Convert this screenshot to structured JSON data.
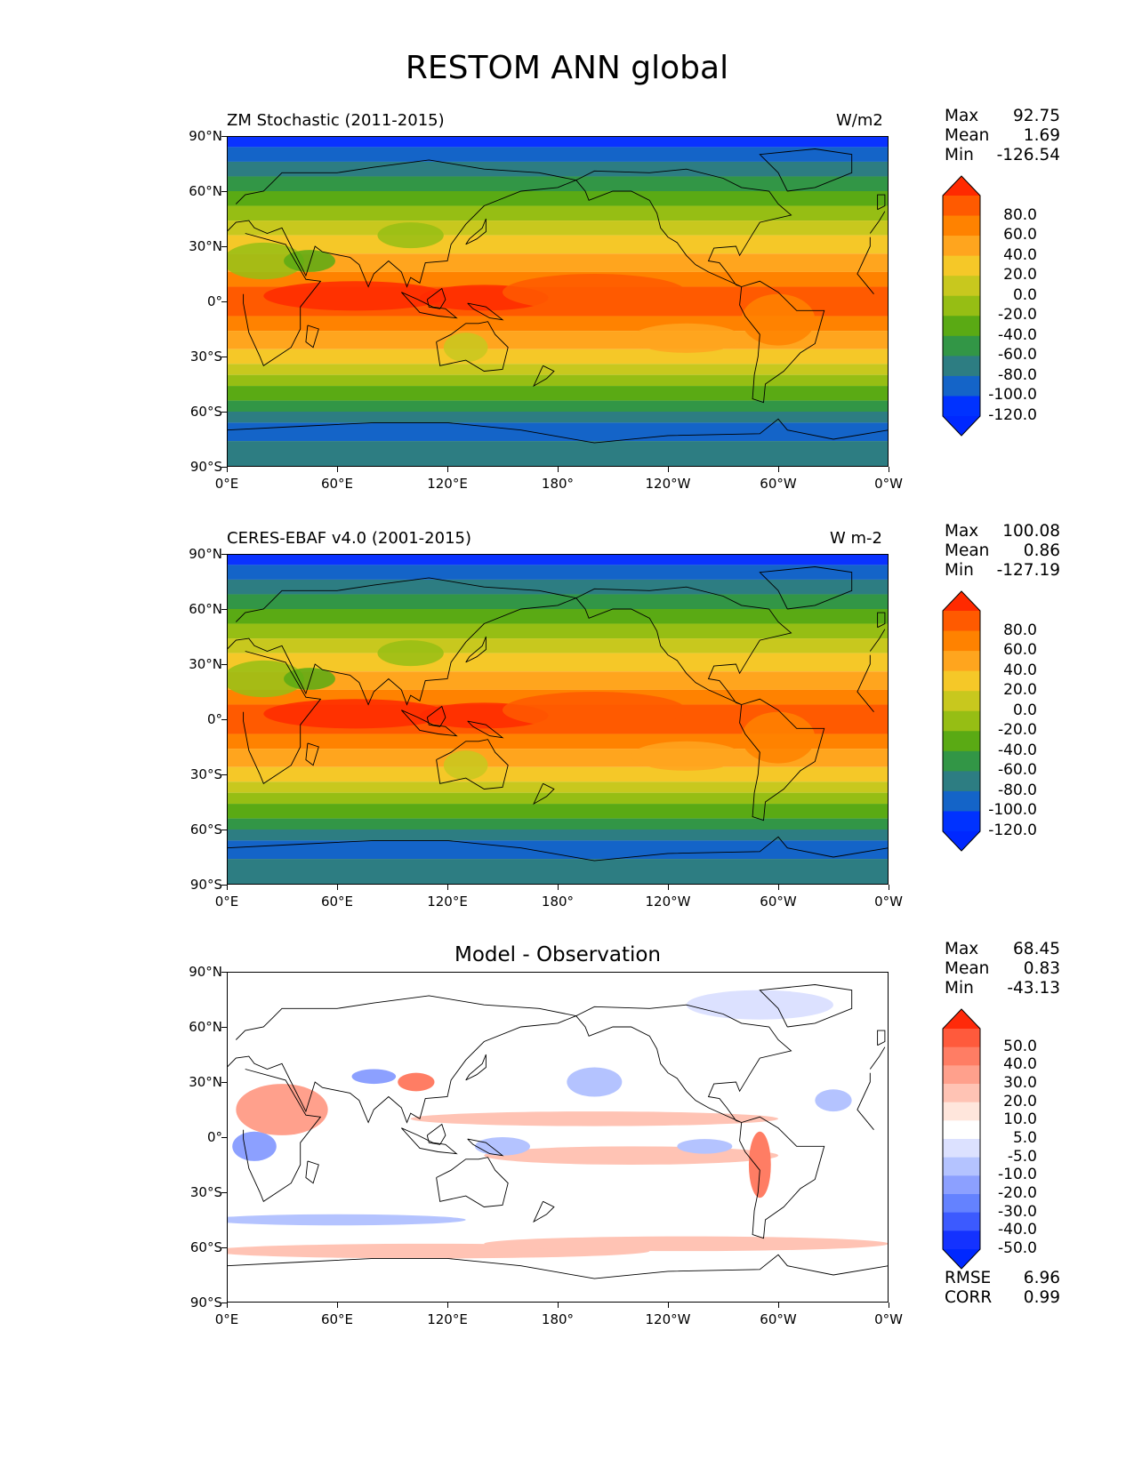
{
  "title": "RESTOM ANN global",
  "panels": [
    {
      "id": "model",
      "title": "ZM Stochastic (2011-2015)",
      "units": "W/m2",
      "stats": {
        "max_label": "Max",
        "max": "92.75",
        "mean_label": "Mean",
        "mean": "1.69",
        "min_label": "Min",
        "min": "-126.54"
      },
      "colorbar": {
        "labels": [
          "80.0",
          "60.0",
          "40.0",
          "20.0",
          "0.0",
          "-20.0",
          "-40.0",
          "-60.0",
          "-80.0",
          "-100.0",
          "-120.0"
        ],
        "colors": [
          "#ff2a00",
          "#ff5a00",
          "#ff8200",
          "#ffa51e",
          "#f5c828",
          "#c8c81e",
          "#96be14",
          "#5aaa14",
          "#329646",
          "#2d7d82",
          "#1464c8",
          "#0032ff",
          "#0028ff"
        ]
      }
    },
    {
      "id": "obs",
      "title": "CERES-EBAF v4.0 (2001-2015)",
      "units": "W m-2",
      "stats": {
        "max_label": "Max",
        "max": "100.08",
        "mean_label": "Mean",
        "mean": "0.86",
        "min_label": "Min",
        "min": "-127.19"
      },
      "colorbar": {
        "labels": [
          "80.0",
          "60.0",
          "40.0",
          "20.0",
          "0.0",
          "-20.0",
          "-40.0",
          "-60.0",
          "-80.0",
          "-100.0",
          "-120.0"
        ],
        "colors": [
          "#ff2a00",
          "#ff5a00",
          "#ff8200",
          "#ffa51e",
          "#f5c828",
          "#c8c81e",
          "#96be14",
          "#5aaa14",
          "#329646",
          "#2d7d82",
          "#1464c8",
          "#0032ff",
          "#0028ff"
        ]
      }
    },
    {
      "id": "diff",
      "title": "Model - Observation",
      "units": "",
      "stats": {
        "max_label": "Max",
        "max": "68.45",
        "mean_label": "Mean",
        "mean": "0.83",
        "min_label": "Min",
        "min": "-43.13"
      },
      "colorbar": {
        "labels": [
          "50.0",
          "40.0",
          "30.0",
          "20.0",
          "10.0",
          "5.0",
          "-5.0",
          "-10.0",
          "-20.0",
          "-30.0",
          "-40.0",
          "-50.0"
        ],
        "colors": [
          "#ff2a0a",
          "#ff5a3c",
          "#ff7d64",
          "#ffa08c",
          "#ffc3b4",
          "#ffe6dc",
          "#ffffff",
          "#dce1ff",
          "#b4c3ff",
          "#8ca0ff",
          "#6482ff",
          "#3c5aff",
          "#1432ff",
          "#0028ff"
        ]
      },
      "extra": {
        "rmse_label": "RMSE",
        "rmse": "6.96",
        "corr_label": "CORR",
        "corr": "0.99"
      }
    }
  ],
  "lat_ticks": [
    "90°N",
    "60°N",
    "30°N",
    "0°",
    "30°S",
    "60°S",
    "90°S"
  ],
  "lon_ticks": [
    "0°E",
    "60°E",
    "120°E",
    "180°",
    "120°W",
    "60°W",
    "0°W"
  ]
}
